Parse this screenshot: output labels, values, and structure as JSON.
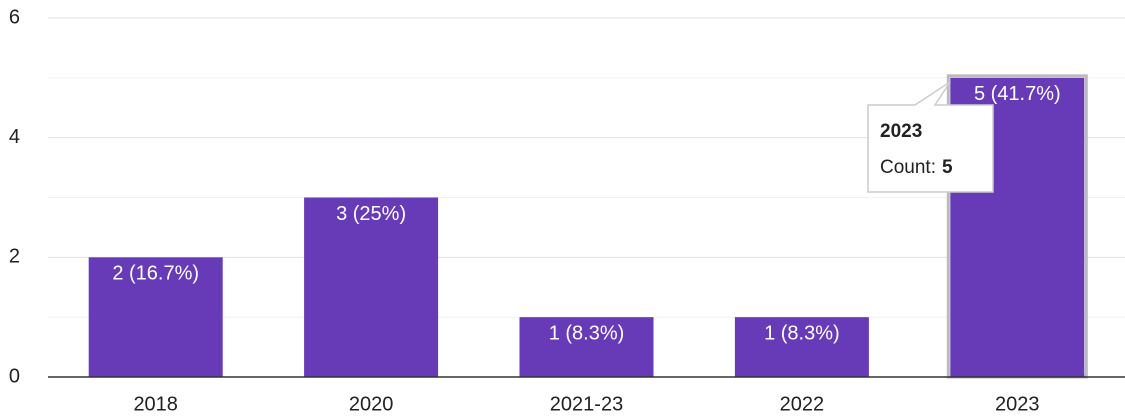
{
  "chart_data": {
    "type": "bar",
    "categories": [
      "2018",
      "2020",
      "2021-23",
      "2022",
      "2023"
    ],
    "values": [
      2,
      3,
      1,
      1,
      5
    ],
    "value_labels": [
      "2 (16.7%)",
      "3 (25%)",
      "1 (8.3%)",
      "1 (8.3%)",
      "5 (41.7%)"
    ],
    "color": "#673ab7",
    "ylim": [
      0,
      6
    ],
    "yticks": [
      0,
      2,
      4,
      6
    ],
    "minor_yticks": [
      1,
      3,
      5
    ],
    "grid": true,
    "tooltip": {
      "title": "2023",
      "label": "Count:",
      "value": 5
    }
  }
}
